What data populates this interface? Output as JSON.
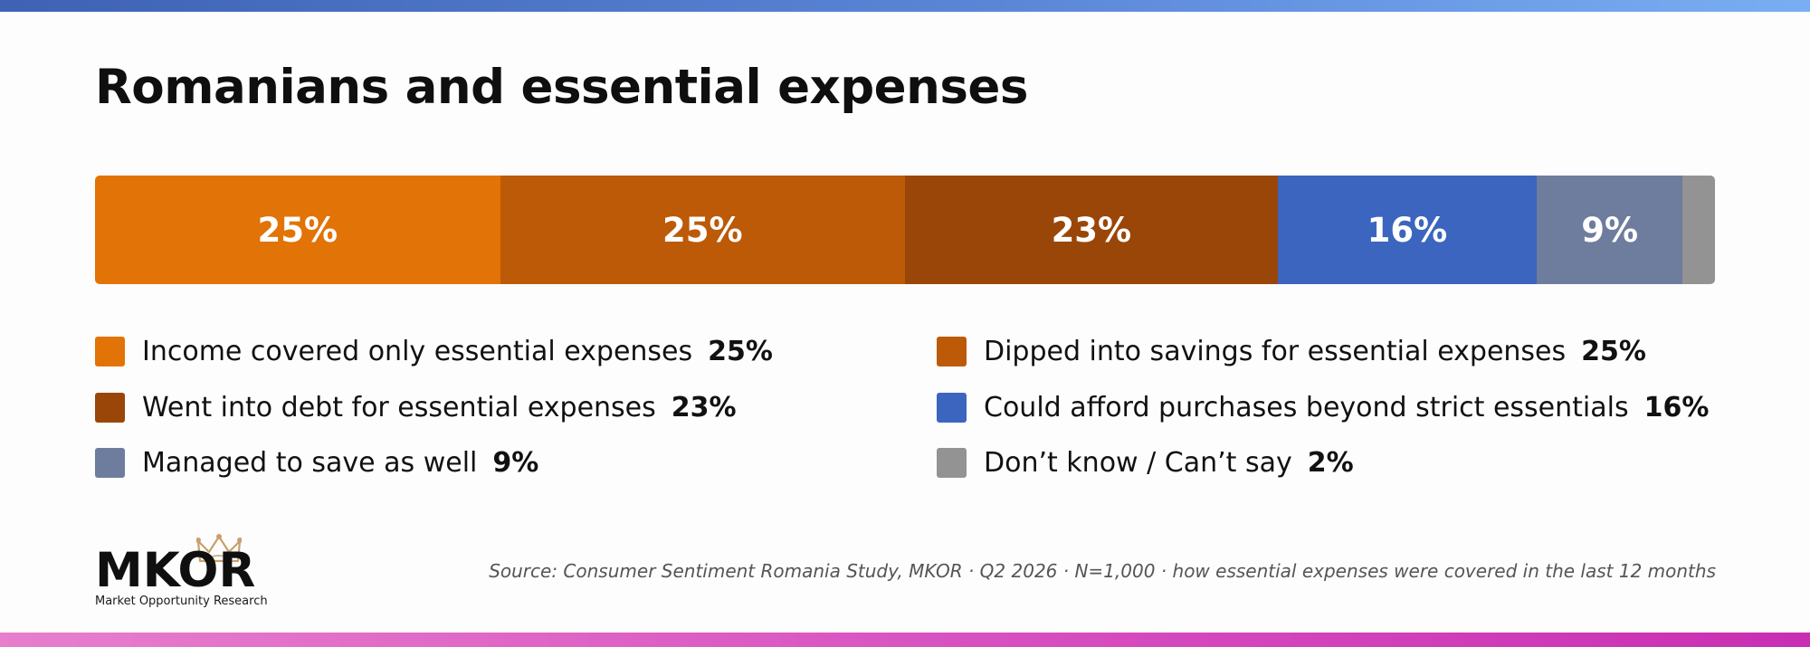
{
  "title": "Romanians and essential expenses",
  "chart_data": {
    "type": "bar",
    "orientation": "horizontal-stacked-100",
    "title": "Romanians and essential expenses",
    "categories": [
      "Income covered only essential expenses",
      "Dipped into savings for essential expenses",
      "Went into debt for essential expenses",
      "Could afford purchases beyond strict essentials",
      "Managed to save as well",
      "Don’t know / Can’t say"
    ],
    "values": [
      25,
      25,
      23,
      16,
      9,
      2
    ],
    "labels": [
      "25%",
      "25%",
      "23%",
      "16%",
      "9%",
      "2%"
    ],
    "colors": [
      "#e27306",
      "#bc5a08",
      "#9a4609",
      "#3b65be",
      "#6e7c9d",
      "#939393"
    ],
    "bar_labels_shown": [
      true,
      true,
      true,
      true,
      true,
      false
    ],
    "legend_placement": "bottom, two columns",
    "unit": "%"
  },
  "logo": {
    "name": "MKOR",
    "subtitle": "Market Opportunity Research"
  },
  "source": "Source: Consumer Sentiment Romania Study, MKOR · Q2 2026 · N=1,000 · how essential expenses were covered in the last 12 months",
  "colors": {
    "top_stripe": "#4a74c9",
    "bottom_stripe": "#d94fc0",
    "text": "#0f0f0f"
  }
}
